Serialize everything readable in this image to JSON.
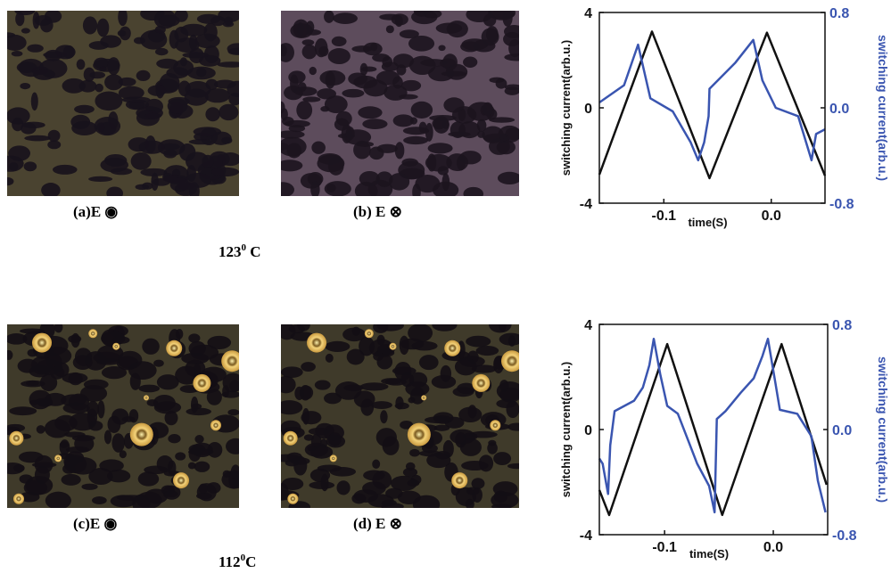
{
  "captions": [
    "(a)E ◉",
    "(b) E ⊗",
    "(c)E ◉",
    "(d) E ⊗"
  ],
  "temperatures": [
    {
      "value": "123",
      "sup": "0",
      "unit": " C"
    },
    {
      "value": "112",
      "sup": "0",
      "unit": "C"
    }
  ],
  "chart_data": [
    {
      "type": "line",
      "x_label": "time(S)",
      "y_label": "switching current(arb.u.)",
      "y2_label": "switching current(arb.u.)",
      "xlim": [
        -0.16,
        0.05
      ],
      "xticks": [
        -0.1,
        {
          "value": 0,
          "label": "0.0"
        }
      ],
      "ylim": [
        -4,
        4
      ],
      "yticks": [
        -4,
        0,
        4
      ],
      "y2lim": [
        -0.8,
        0.8
      ],
      "y2ticks": [
        -0.8,
        {
          "value": 0,
          "label": "0.0"
        },
        0.8
      ],
      "series": [
        {
          "color": "#111111",
          "x": [
            -0.16,
            -0.111,
            -0.0575,
            -0.004,
            0.05
          ],
          "values": [
            -2.8,
            3.2,
            -2.95,
            3.15,
            -2.85
          ]
        },
        {
          "color": "#3a55b0",
          "axis": "y2",
          "x": [
            -0.16,
            -0.137,
            -0.124,
            -0.1125,
            -0.0917,
            -0.075,
            -0.068,
            -0.0625,
            -0.0583,
            -0.0575,
            -0.0333,
            -0.0167,
            -0.0083,
            0.0042,
            0.025,
            0.0375,
            0.0417,
            0.05
          ],
          "values": [
            0.045,
            0.19,
            0.53,
            0.08,
            -0.03,
            -0.29,
            -0.44,
            -0.29,
            -0.07,
            0.16,
            0.38,
            0.57,
            0.23,
            0.0,
            -0.07,
            -0.44,
            -0.22,
            -0.18
          ]
        }
      ]
    },
    {
      "type": "line",
      "x_label": "time(S)",
      "y_label": "switching current(arb.u.)",
      "y2_label": "switching current(arb.u.)",
      "xlim": [
        -0.16,
        0.05
      ],
      "xticks": [
        -0.1,
        {
          "value": 0,
          "label": "0.0"
        }
      ],
      "ylim": [
        -4,
        4
      ],
      "yticks": [
        -4,
        0,
        4
      ],
      "y2lim": [
        -0.8,
        0.8
      ],
      "y2ticks": [
        -0.8,
        {
          "value": 0,
          "label": "0.0"
        },
        0.8
      ],
      "series": [
        {
          "color": "#111111",
          "x": [
            -0.16,
            -0.151,
            -0.0976,
            -0.047,
            0.0076,
            0.049
          ],
          "values": [
            -2.3,
            -3.25,
            3.25,
            -3.25,
            3.25,
            -2.1
          ]
        },
        {
          "color": "#3a55b0",
          "axis": "y2",
          "x": [
            -0.16,
            -0.157,
            -0.152,
            -0.15,
            -0.146,
            -0.128,
            -0.12,
            -0.114,
            -0.11,
            -0.104,
            -0.0976,
            -0.0878,
            -0.07,
            -0.059,
            -0.054,
            -0.052,
            -0.044,
            -0.03,
            -0.018,
            -0.01,
            -0.005,
            0.002,
            0.006,
            0.022,
            0.035,
            0.041,
            0.048
          ],
          "values": [
            -0.22,
            -0.26,
            -0.49,
            -0.12,
            0.14,
            0.22,
            0.32,
            0.49,
            0.69,
            0.42,
            0.18,
            0.12,
            -0.26,
            -0.43,
            -0.63,
            0.08,
            0.14,
            0.28,
            0.39,
            0.56,
            0.69,
            0.35,
            0.15,
            0.12,
            -0.05,
            -0.39,
            -0.63
          ]
        }
      ]
    }
  ]
}
